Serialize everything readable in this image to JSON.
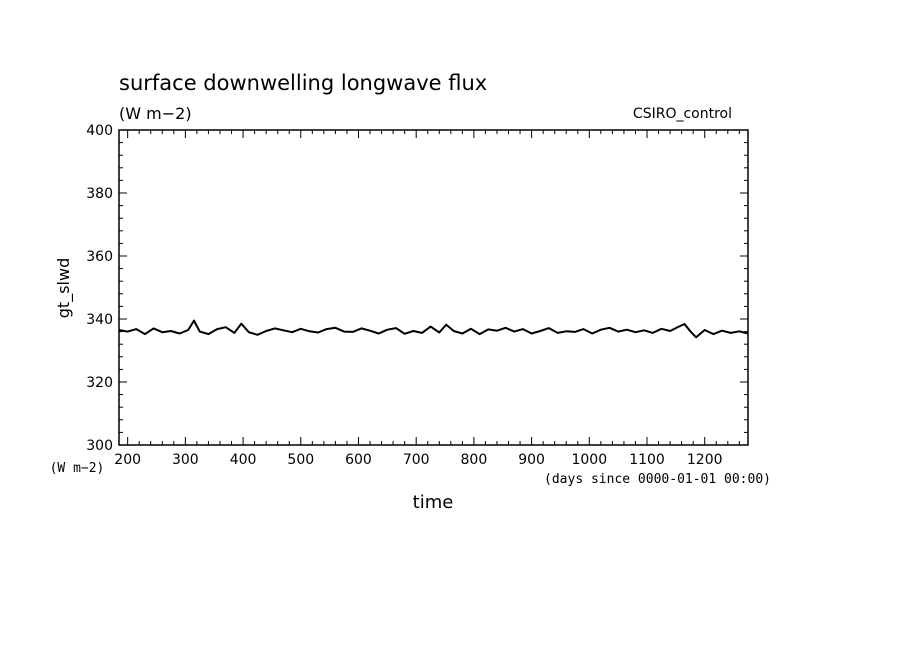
{
  "chart_data": {
    "type": "line",
    "title": "surface downwelling longwave flux",
    "subtitle": "(W m−2)",
    "label_right": "CSIRO_control",
    "xlabel": "time",
    "ylabel": "gt_slwd",
    "x_units": "(days since 0000-01-01 00:00)",
    "y_units": "(W m−2)",
    "xlim": [
      185,
      1275
    ],
    "ylim": [
      300,
      400
    ],
    "x_ticks": [
      200,
      300,
      400,
      500,
      600,
      700,
      800,
      900,
      1000,
      1100,
      1200
    ],
    "x_tick_labels": [
      "200",
      "300",
      "400",
      "500",
      "600",
      "700",
      "800",
      "900",
      "1000",
      "1100",
      "1200"
    ],
    "y_ticks": [
      300,
      320,
      340,
      360,
      380,
      400
    ],
    "y_tick_labels": [
      "300",
      "320",
      "340",
      "360",
      "380",
      "400"
    ],
    "grid": false,
    "line_color": "#000000",
    "series": [
      {
        "x": [
          185,
          200,
          215,
          230,
          245,
          260,
          275,
          290,
          305,
          315,
          325,
          340,
          355,
          370,
          385,
          397,
          410,
          425,
          440,
          455,
          470,
          485,
          500,
          515,
          530,
          545,
          560,
          575,
          590,
          605,
          620,
          635,
          650,
          665,
          680,
          695,
          710,
          725,
          740,
          752,
          765,
          780,
          795,
          810,
          825,
          840,
          855,
          870,
          885,
          900,
          915,
          930,
          945,
          960,
          975,
          990,
          1005,
          1020,
          1035,
          1050,
          1065,
          1080,
          1095,
          1110,
          1125,
          1140,
          1155,
          1165,
          1175,
          1185,
          1200,
          1215,
          1230,
          1245,
          1260,
          1275
        ],
        "y": [
          336.5,
          336.0,
          336.8,
          335.2,
          337.0,
          335.8,
          336.2,
          335.4,
          336.5,
          339.5,
          336.0,
          335.2,
          336.8,
          337.4,
          335.6,
          338.5,
          335.8,
          335.0,
          336.2,
          337.0,
          336.4,
          335.8,
          336.9,
          336.1,
          335.7,
          336.8,
          337.2,
          336.0,
          335.9,
          337.0,
          336.3,
          335.4,
          336.6,
          337.1,
          335.3,
          336.2,
          335.6,
          337.6,
          335.7,
          338.2,
          336.2,
          335.4,
          336.9,
          335.2,
          336.7,
          336.3,
          337.2,
          336.0,
          336.8,
          335.4,
          336.2,
          337.1,
          335.6,
          336.1,
          335.9,
          336.8,
          335.4,
          336.6,
          337.2,
          336.0,
          336.6,
          335.8,
          336.4,
          335.6,
          336.9,
          336.2,
          337.6,
          338.4,
          336.1,
          334.2,
          336.5,
          335.2,
          336.3,
          335.6,
          336.1,
          335.4
        ]
      }
    ]
  }
}
